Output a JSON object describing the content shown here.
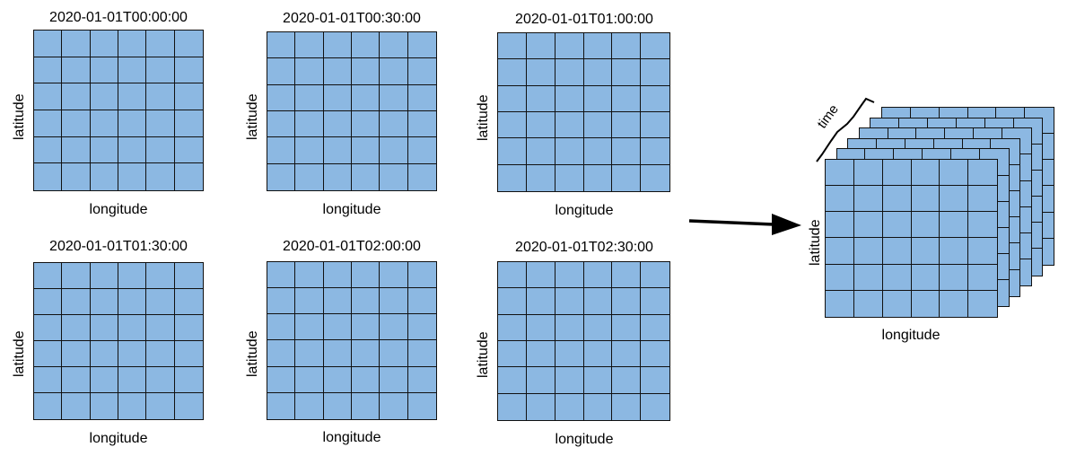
{
  "colors": {
    "cell_fill": "#8cb8e2",
    "line": "#111111"
  },
  "panels": [
    {
      "title": "2020-01-01T00:00:00",
      "xlabel": "longitude",
      "ylabel": "latitude"
    },
    {
      "title": "2020-01-01T00:30:00",
      "xlabel": "longitude",
      "ylabel": "latitude"
    },
    {
      "title": "2020-01-01T01:00:00",
      "xlabel": "longitude",
      "ylabel": "latitude"
    },
    {
      "title": "2020-01-01T01:30:00",
      "xlabel": "longitude",
      "ylabel": "latitude"
    },
    {
      "title": "2020-01-01T02:00:00",
      "xlabel": "longitude",
      "ylabel": "latitude"
    },
    {
      "title": "2020-01-01T02:30:00",
      "xlabel": "longitude",
      "ylabel": "latitude"
    }
  ],
  "grid": {
    "rows": 6,
    "cols": 6
  },
  "cube": {
    "xlabel": "longitude",
    "ylabel": "latitude",
    "stack_label": "time",
    "layers": 6
  },
  "arrow_icon": "right-arrow-icon"
}
